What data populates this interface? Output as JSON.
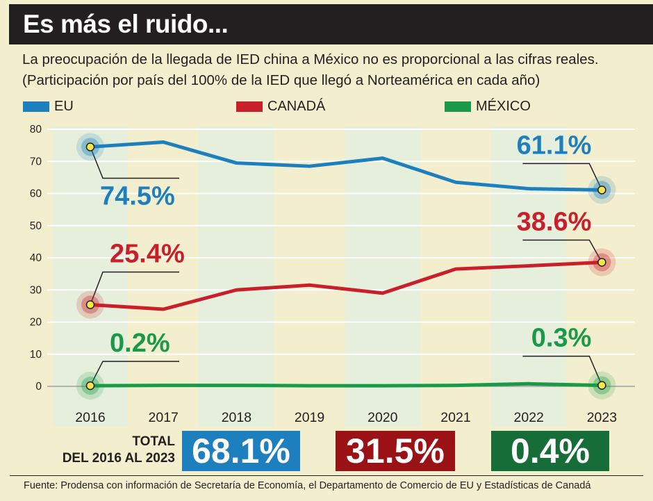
{
  "title": "Es más el ruido...",
  "subtitle_line1": "La preocupación de la llegada de IED china a México no es proporcional a las cifras reales.",
  "subtitle_line2": "(Participación por país del 100% de la IED que llegó a Norteamérica en cada año)",
  "colors": {
    "eu": "#1d7fbd",
    "canada": "#c91f2b",
    "mexico": "#1a9a48",
    "eu_box": "#1d7fbd",
    "canada_box": "#9b1216",
    "mexico_box": "#176d38",
    "band": "#e6efdc",
    "grid": "#ffffff",
    "marker": "#f6e84a"
  },
  "chart_data": {
    "type": "line",
    "x": [
      "2016",
      "2017",
      "2018",
      "2019",
      "2020",
      "2021",
      "2022",
      "2023"
    ],
    "ylim": [
      0,
      80
    ],
    "yticks": [
      0,
      10,
      20,
      30,
      40,
      50,
      60,
      70,
      80
    ],
    "series": [
      {
        "key": "eu",
        "name": "EU",
        "values": [
          74.5,
          76,
          69.5,
          68.5,
          71,
          63.5,
          61.5,
          61.1
        ]
      },
      {
        "key": "canada",
        "name": "CANADÁ",
        "values": [
          25.4,
          24,
          30,
          31.5,
          29,
          36.5,
          37.5,
          38.6
        ]
      },
      {
        "key": "mexico",
        "name": "MÉXICO",
        "values": [
          0.2,
          0.3,
          0.3,
          0.2,
          0.2,
          0.3,
          0.8,
          0.3
        ]
      }
    ],
    "annotations": {
      "eu_start": "74.5%",
      "eu_end": "61.1%",
      "canada_start": "25.4%",
      "canada_end": "38.6%",
      "mexico_start": "0.2%",
      "mexico_end": "0.3%"
    }
  },
  "totals": {
    "label_line1": "TOTAL",
    "label_line2": "DEL 2016 AL 2023",
    "eu": "68.1%",
    "canada": "31.5%",
    "mexico": "0.4%"
  },
  "footer": "Fuente: Prodensa con información de Secretaría de Economía, el Departamento de Comercio de EU y Estadísticas de Canadá"
}
